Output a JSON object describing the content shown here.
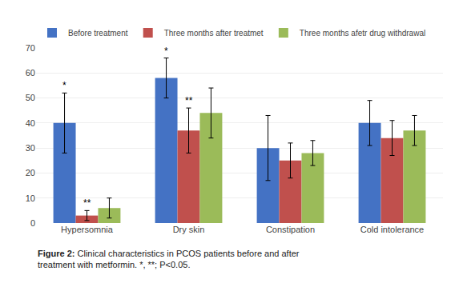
{
  "chart_data": {
    "type": "bar",
    "categories": [
      "Hypersomnia",
      "Dry skin",
      "Constipation",
      "Cold intolerance"
    ],
    "series": [
      {
        "name": "Before treatment",
        "color": "#4472C4",
        "values": [
          40,
          58,
          30,
          40
        ],
        "errors": [
          12,
          8,
          13,
          9
        ]
      },
      {
        "name": "Three months after treatmet",
        "color": "#C0504D",
        "values": [
          3,
          37,
          25,
          34
        ],
        "errors": [
          2,
          9,
          7,
          7
        ]
      },
      {
        "name": "Three months afetr drug withdrawal",
        "color": "#9BBB59",
        "values": [
          6,
          44,
          28,
          37
        ],
        "errors": [
          4,
          10,
          5,
          6
        ]
      }
    ],
    "ylim": [
      0,
      70
    ],
    "yticks": [
      0,
      10,
      20,
      30,
      40,
      50,
      60,
      70
    ],
    "grid": true,
    "legend": "top",
    "annotations": [
      {
        "category": "Hypersomnia",
        "series": "Before treatment",
        "text": "*"
      },
      {
        "category": "Hypersomnia",
        "series": "Three months after treatmet",
        "text": "**"
      },
      {
        "category": "Dry skin",
        "series": "Before treatment",
        "text": "*"
      },
      {
        "category": "Dry skin",
        "series": "Three months after treatmet",
        "text": "**"
      }
    ],
    "caption": {
      "bold": "Figure 2:",
      "text": " Clinical characteristics in PCOS patients before and after\ntreatment with metformin. *, **; P<0.05."
    }
  }
}
